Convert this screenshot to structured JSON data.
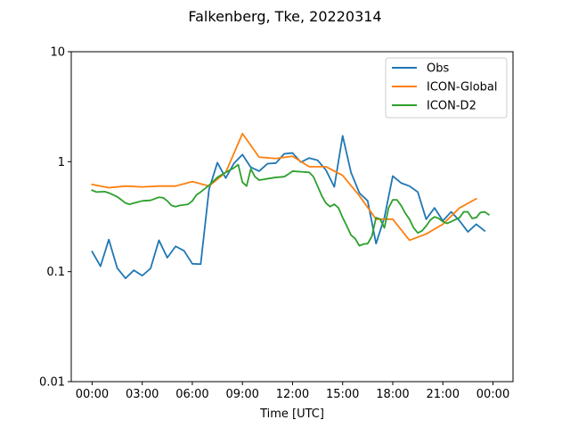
{
  "chart_data": {
    "type": "line",
    "title": "Falkenberg, Tke, 20220314",
    "xlabel": "Time [UTC]",
    "ylabel": "",
    "yscale": "log",
    "ylim": [
      0.01,
      10
    ],
    "xlim_hours": [
      -1.25,
      25.2
    ],
    "x_unit": "hours UTC",
    "x_ticks": [
      {
        "hour": 0,
        "label": "00:00"
      },
      {
        "hour": 3,
        "label": "03:00"
      },
      {
        "hour": 6,
        "label": "06:00"
      },
      {
        "hour": 9,
        "label": "09:00"
      },
      {
        "hour": 12,
        "label": "12:00"
      },
      {
        "hour": 15,
        "label": "15:00"
      },
      {
        "hour": 18,
        "label": "18:00"
      },
      {
        "hour": 21,
        "label": "21:00"
      },
      {
        "hour": 24,
        "label": "00:00"
      }
    ],
    "y_ticks": [
      {
        "value": 0.01,
        "label": "0.01"
      },
      {
        "value": 0.1,
        "label": "0.1"
      },
      {
        "value": 1,
        "label": "1"
      },
      {
        "value": 10,
        "label": "10"
      }
    ],
    "grid": false,
    "legend_position": "top-right",
    "series": [
      {
        "name": "Obs",
        "color": "#1f77b4",
        "points": [
          [
            0.0,
            0.152
          ],
          [
            0.5,
            0.112
          ],
          [
            1.0,
            0.196
          ],
          [
            1.5,
            0.108
          ],
          [
            2.0,
            0.087
          ],
          [
            2.5,
            0.103
          ],
          [
            3.0,
            0.092
          ],
          [
            3.5,
            0.107
          ],
          [
            4.0,
            0.193
          ],
          [
            4.5,
            0.134
          ],
          [
            5.0,
            0.17
          ],
          [
            5.5,
            0.155
          ],
          [
            6.0,
            0.118
          ],
          [
            6.5,
            0.117
          ],
          [
            7.0,
            0.56
          ],
          [
            7.5,
            0.98
          ],
          [
            8.0,
            0.71
          ],
          [
            8.5,
            0.97
          ],
          [
            9.0,
            1.16
          ],
          [
            9.5,
            0.89
          ],
          [
            10.0,
            0.82
          ],
          [
            10.5,
            0.96
          ],
          [
            11.0,
            0.97
          ],
          [
            11.5,
            1.18
          ],
          [
            12.0,
            1.2
          ],
          [
            12.5,
            0.99
          ],
          [
            13.0,
            1.08
          ],
          [
            13.5,
            1.03
          ],
          [
            14.0,
            0.84
          ],
          [
            14.5,
            0.59
          ],
          [
            15.0,
            1.72
          ],
          [
            15.5,
            0.8
          ],
          [
            16.0,
            0.52
          ],
          [
            16.5,
            0.44
          ],
          [
            17.0,
            0.18
          ],
          [
            17.5,
            0.31
          ],
          [
            18.0,
            0.74
          ],
          [
            18.5,
            0.64
          ],
          [
            19.0,
            0.6
          ],
          [
            19.5,
            0.53
          ],
          [
            20.0,
            0.3
          ],
          [
            20.5,
            0.38
          ],
          [
            21.0,
            0.29
          ],
          [
            21.5,
            0.35
          ],
          [
            22.0,
            0.29
          ],
          [
            22.5,
            0.23
          ],
          [
            23.0,
            0.27
          ],
          [
            23.5,
            0.235
          ]
        ]
      },
      {
        "name": "ICON-Global",
        "color": "#ff7f0e",
        "points": [
          [
            0.0,
            0.62
          ],
          [
            1.0,
            0.58
          ],
          [
            2.0,
            0.6
          ],
          [
            3.0,
            0.59
          ],
          [
            4.0,
            0.6
          ],
          [
            5.0,
            0.6
          ],
          [
            6.0,
            0.66
          ],
          [
            7.0,
            0.6
          ],
          [
            8.0,
            0.8
          ],
          [
            9.0,
            1.8
          ],
          [
            10.0,
            1.1
          ],
          [
            11.0,
            1.07
          ],
          [
            12.0,
            1.12
          ],
          [
            13.0,
            0.9
          ],
          [
            14.0,
            0.9
          ],
          [
            15.0,
            0.75
          ],
          [
            16.0,
            0.49
          ],
          [
            17.0,
            0.3
          ],
          [
            18.0,
            0.3
          ],
          [
            19.0,
            0.193
          ],
          [
            20.0,
            0.22
          ],
          [
            21.0,
            0.27
          ],
          [
            22.0,
            0.38
          ],
          [
            23.0,
            0.46
          ]
        ]
      },
      {
        "name": "ICON-D2",
        "color": "#2ca02c",
        "points": [
          [
            0.0,
            0.55
          ],
          [
            0.25,
            0.53
          ],
          [
            0.75,
            0.535
          ],
          [
            1.0,
            0.52
          ],
          [
            1.25,
            0.5
          ],
          [
            1.5,
            0.48
          ],
          [
            1.75,
            0.45
          ],
          [
            2.0,
            0.42
          ],
          [
            2.25,
            0.41
          ],
          [
            2.5,
            0.42
          ],
          [
            2.75,
            0.43
          ],
          [
            3.0,
            0.44
          ],
          [
            3.5,
            0.445
          ],
          [
            3.75,
            0.46
          ],
          [
            4.0,
            0.475
          ],
          [
            4.25,
            0.47
          ],
          [
            4.5,
            0.44
          ],
          [
            4.75,
            0.4
          ],
          [
            5.0,
            0.39
          ],
          [
            5.25,
            0.4
          ],
          [
            5.75,
            0.41
          ],
          [
            6.0,
            0.44
          ],
          [
            6.25,
            0.5
          ],
          [
            6.5,
            0.53
          ],
          [
            7.0,
            0.61
          ],
          [
            7.5,
            0.72
          ],
          [
            8.0,
            0.8
          ],
          [
            8.5,
            0.88
          ],
          [
            8.75,
            0.94
          ],
          [
            9.0,
            0.65
          ],
          [
            9.25,
            0.6
          ],
          [
            9.5,
            0.86
          ],
          [
            9.75,
            0.73
          ],
          [
            10.0,
            0.68
          ],
          [
            10.25,
            0.69
          ],
          [
            10.5,
            0.7
          ],
          [
            11.0,
            0.72
          ],
          [
            11.5,
            0.73
          ],
          [
            11.75,
            0.77
          ],
          [
            12.0,
            0.82
          ],
          [
            12.5,
            0.81
          ],
          [
            13.0,
            0.8
          ],
          [
            13.25,
            0.73
          ],
          [
            13.5,
            0.6
          ],
          [
            13.75,
            0.49
          ],
          [
            14.0,
            0.42
          ],
          [
            14.25,
            0.39
          ],
          [
            14.5,
            0.41
          ],
          [
            14.75,
            0.38
          ],
          [
            15.0,
            0.31
          ],
          [
            15.25,
            0.26
          ],
          [
            15.5,
            0.215
          ],
          [
            15.75,
            0.2
          ],
          [
            16.0,
            0.172
          ],
          [
            16.25,
            0.178
          ],
          [
            16.5,
            0.18
          ],
          [
            16.75,
            0.21
          ],
          [
            17.0,
            0.31
          ],
          [
            17.25,
            0.3
          ],
          [
            17.5,
            0.25
          ],
          [
            17.75,
            0.38
          ],
          [
            18.0,
            0.45
          ],
          [
            18.25,
            0.45
          ],
          [
            18.5,
            0.4
          ],
          [
            18.75,
            0.34
          ],
          [
            19.0,
            0.3
          ],
          [
            19.25,
            0.25
          ],
          [
            19.5,
            0.225
          ],
          [
            19.75,
            0.235
          ],
          [
            20.0,
            0.26
          ],
          [
            20.25,
            0.295
          ],
          [
            20.5,
            0.315
          ],
          [
            20.75,
            0.305
          ],
          [
            21.0,
            0.285
          ],
          [
            21.25,
            0.275
          ],
          [
            21.5,
            0.285
          ],
          [
            22.0,
            0.31
          ],
          [
            22.25,
            0.35
          ],
          [
            22.5,
            0.35
          ],
          [
            22.75,
            0.305
          ],
          [
            23.0,
            0.31
          ],
          [
            23.25,
            0.345
          ],
          [
            23.5,
            0.35
          ],
          [
            23.75,
            0.33
          ]
        ]
      }
    ]
  }
}
